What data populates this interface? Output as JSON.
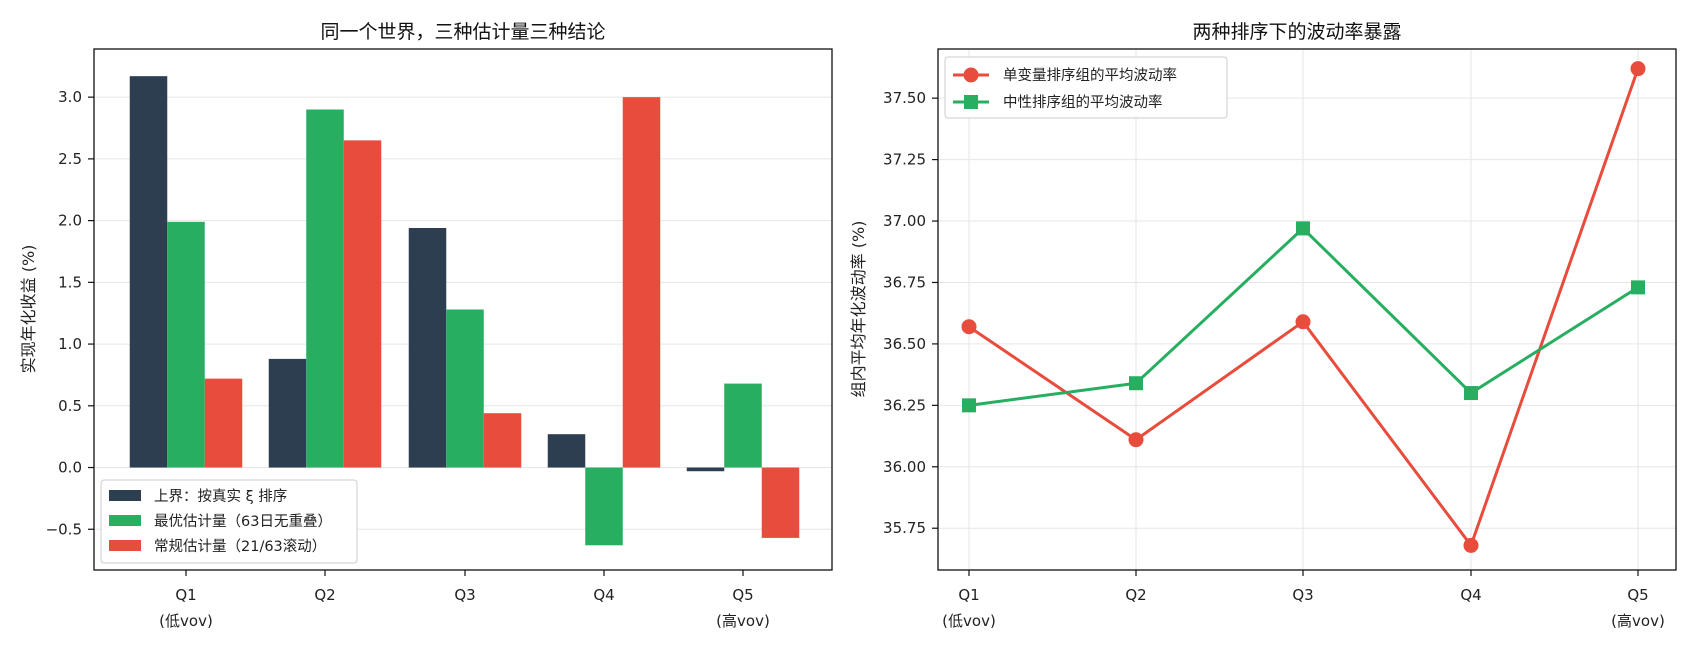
{
  "chart_data": [
    {
      "type": "bar",
      "title": "同一个世界，三种估计量三种结论",
      "xlabel": "",
      "ylabel": "实现年化收益 (%)",
      "categories": [
        [
          "Q1",
          "(低vov)"
        ],
        [
          "Q2"
        ],
        [
          "Q3"
        ],
        [
          "Q4"
        ],
        [
          "Q5",
          "(高vov)"
        ]
      ],
      "ylim": [
        -0.83,
        3.39
      ],
      "yticks": [
        -0.5,
        0.0,
        0.5,
        1.0,
        1.5,
        2.0,
        2.5,
        3.0
      ],
      "ytick_labels": [
        "−0.5",
        "0.0",
        "0.5",
        "1.0",
        "1.5",
        "2.0",
        "2.5",
        "3.0"
      ],
      "grid": true,
      "legend_position": "lower-left",
      "series": [
        {
          "name": "上界：按真实 ξ 排序",
          "color": "#2c3e50",
          "values": [
            3.17,
            0.88,
            1.94,
            0.27,
            -0.03
          ]
        },
        {
          "name": "最优估计量（63日无重叠）",
          "color": "#27ae60",
          "values": [
            1.99,
            2.9,
            1.28,
            -0.63,
            0.68
          ]
        },
        {
          "name": "常规估计量（21/63滚动）",
          "color": "#e74c3c",
          "values": [
            0.72,
            2.65,
            0.44,
            3.0,
            -0.57
          ]
        }
      ]
    },
    {
      "type": "line",
      "title": "两种排序下的波动率暴露",
      "xlabel": "",
      "ylabel": "组内平均年化波动率 (%)",
      "categories": [
        [
          "Q1",
          "(低vov)"
        ],
        [
          "Q2"
        ],
        [
          "Q3"
        ],
        [
          "Q4"
        ],
        [
          "Q5",
          "(高vov)"
        ]
      ],
      "ylim": [
        35.58,
        37.7
      ],
      "yticks": [
        35.75,
        36.0,
        36.25,
        36.5,
        36.75,
        37.0,
        37.25,
        37.5
      ],
      "ytick_labels": [
        "35.75",
        "36.00",
        "36.25",
        "36.50",
        "36.75",
        "37.00",
        "37.25",
        "37.50"
      ],
      "grid": true,
      "legend_position": "top-left",
      "series": [
        {
          "name": "单变量排序组的平均波动率",
          "color": "#e74c3c",
          "marker": "circle",
          "values": [
            36.57,
            36.11,
            36.59,
            35.68,
            37.62
          ]
        },
        {
          "name": "中性排序组的平均波动率",
          "color": "#27ae60",
          "marker": "square",
          "values": [
            36.25,
            36.34,
            36.97,
            36.3,
            36.73
          ]
        }
      ]
    }
  ]
}
